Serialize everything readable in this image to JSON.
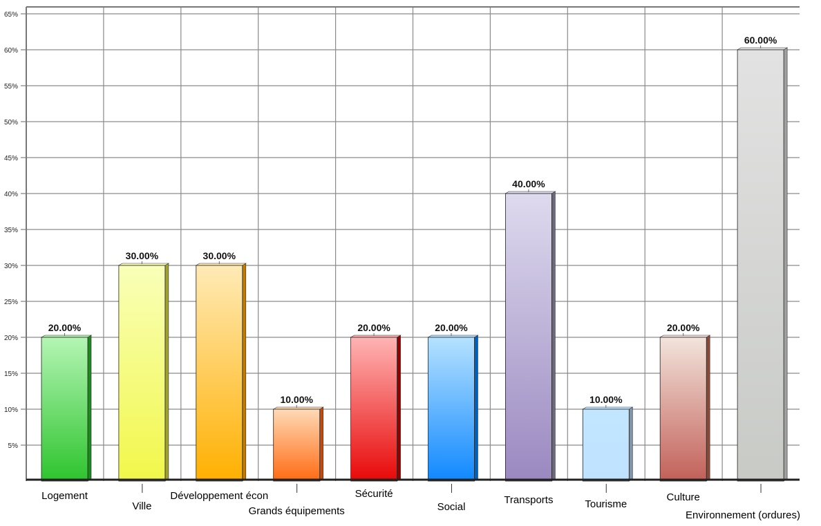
{
  "chart_data": {
    "type": "bar",
    "title": "",
    "xlabel": "",
    "ylabel": "",
    "ylim": [
      0,
      65
    ],
    "y_ticks": [
      "5%",
      "10%",
      "15%",
      "20%",
      "25%",
      "30%",
      "35%",
      "40%",
      "45%",
      "50%",
      "55%",
      "60%",
      "65%"
    ],
    "grid": true,
    "legend": "none",
    "categories": [
      "Logement",
      "Ville",
      "Développement écon",
      "Grands équipements",
      "Sécurité",
      "Social",
      "Transports",
      "Tourisme",
      "Culture",
      "Environnement (ordures)"
    ],
    "values": [
      20,
      30,
      30,
      10,
      20,
      20,
      40,
      10,
      20,
      60
    ],
    "data_labels": [
      "20.00%",
      "30.00%",
      "30.00%",
      "10.00%",
      "20.00%",
      "20.00%",
      "40.00%",
      "10.00%",
      "20.00%",
      "60.00%"
    ],
    "colors": [
      [
        "#b4f5b4",
        "#2ec42e",
        "#1f8a1f"
      ],
      [
        "#f9ffb8",
        "#f2f74a",
        "#a2a232"
      ],
      [
        "#ffeab6",
        "#ffb000",
        "#c27a00"
      ],
      [
        "#ffdab6",
        "#ff6a12",
        "#c04a12"
      ],
      [
        "#ffb4b4",
        "#e80808",
        "#940000"
      ],
      [
        "#b6e2ff",
        "#1088ff",
        "#0060c0"
      ],
      [
        "#dedaee",
        "#9a88c0",
        "#6a6a7a"
      ],
      [
        "#c2e6ff",
        "#bfe3ff",
        "#8094a8"
      ],
      [
        "#f2e4dc",
        "#c26058",
        "#8a4a3a"
      ],
      [
        "#e2e2e2",
        "#c8cac6",
        "#a0a0a0"
      ]
    ]
  }
}
